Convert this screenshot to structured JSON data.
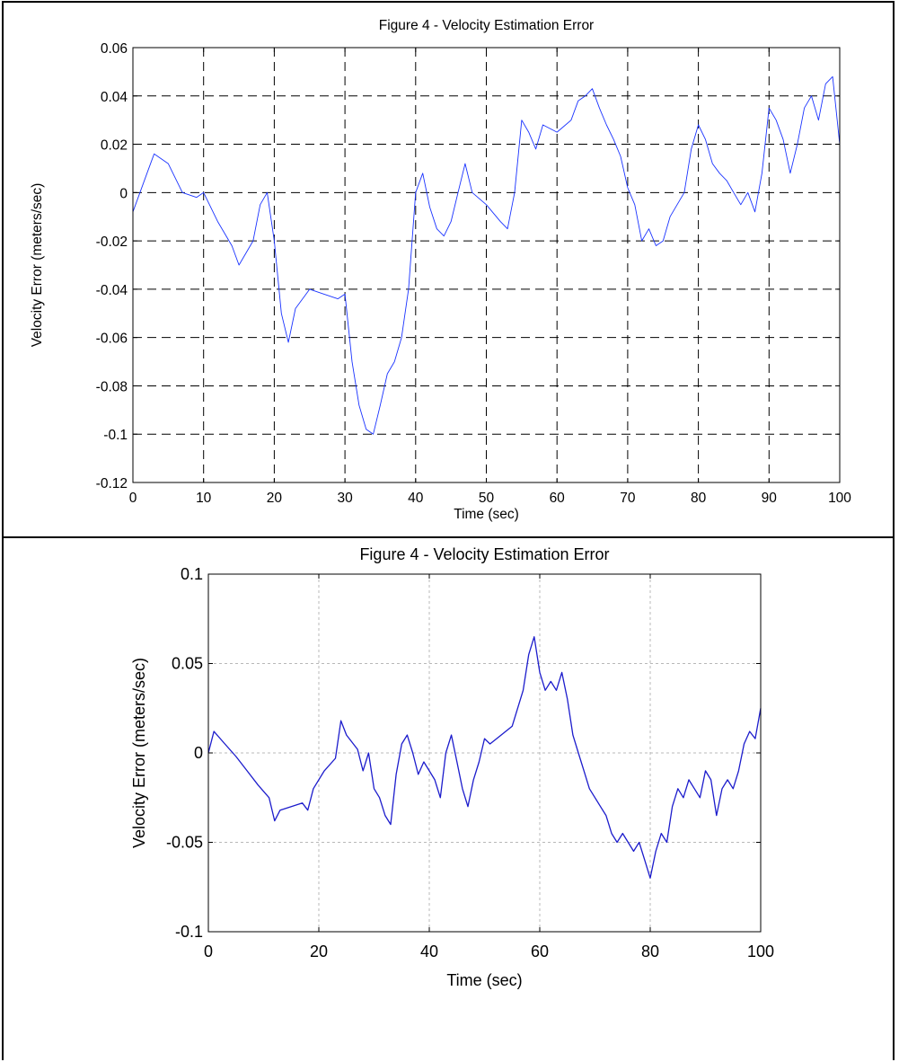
{
  "chart_data": [
    {
      "type": "line",
      "title": "Figure 4 - Velocity Estimation Error",
      "xlabel": "Time (sec)",
      "ylabel": "Velocity Error (meters/sec)",
      "xlim": [
        0,
        100
      ],
      "ylim": [
        -0.12,
        0.06
      ],
      "x_ticks": [
        "0",
        "10",
        "20",
        "30",
        "40",
        "50",
        "60",
        "70",
        "80",
        "90",
        "100"
      ],
      "y_ticks": [
        "0.06",
        "0.04",
        "0.02",
        "0",
        "-0.02",
        "-0.04",
        "-0.06",
        "-0.08",
        "-0.1",
        "-0.12"
      ],
      "grid": "on",
      "grid_style": "dashed",
      "line_color": "#1a33ff",
      "x": [
        0,
        2,
        3,
        5,
        7,
        9,
        10,
        12,
        14,
        15,
        17,
        18,
        19,
        20,
        21,
        22,
        23,
        25,
        27,
        29,
        30,
        31,
        32,
        33,
        34,
        35,
        36,
        37,
        38,
        39,
        40,
        41,
        42,
        43,
        44,
        45,
        46,
        47,
        48,
        50,
        52,
        53,
        54,
        55,
        56,
        57,
        58,
        60,
        62,
        63,
        64,
        65,
        66,
        67,
        68,
        69,
        70,
        71,
        72,
        73,
        74,
        75,
        76,
        78,
        79,
        80,
        81,
        82,
        83,
        84,
        85,
        86,
        87,
        88,
        89,
        90,
        91,
        92,
        93,
        94,
        95,
        96,
        97,
        98,
        99,
        100
      ],
      "values": [
        -0.008,
        0.008,
        0.016,
        0.012,
        0.0,
        -0.002,
        0.0,
        -0.012,
        -0.022,
        -0.03,
        -0.02,
        -0.005,
        0.0,
        -0.02,
        -0.05,
        -0.062,
        -0.048,
        -0.04,
        -0.042,
        -0.044,
        -0.042,
        -0.07,
        -0.088,
        -0.098,
        -0.1,
        -0.088,
        -0.075,
        -0.07,
        -0.06,
        -0.04,
        0.0,
        0.008,
        -0.006,
        -0.015,
        -0.018,
        -0.012,
        0.0,
        0.012,
        0.0,
        -0.005,
        -0.012,
        -0.015,
        0.0,
        0.03,
        0.025,
        0.018,
        0.028,
        0.025,
        0.03,
        0.038,
        0.04,
        0.043,
        0.035,
        0.028,
        0.022,
        0.015,
        0.002,
        -0.005,
        -0.02,
        -0.015,
        -0.022,
        -0.02,
        -0.01,
        0.0,
        0.018,
        0.028,
        0.022,
        0.012,
        0.008,
        0.005,
        0.0,
        -0.005,
        0.0,
        -0.008,
        0.008,
        0.035,
        0.03,
        0.022,
        0.008,
        0.02,
        0.035,
        0.04,
        0.03,
        0.045,
        0.048,
        0.02
      ]
    },
    {
      "type": "line",
      "title": "Figure 4 - Velocity Estimation Error",
      "xlabel": "Time (sec)",
      "ylabel": "Velocity Error (meters/sec)",
      "xlim": [
        0,
        100
      ],
      "ylim": [
        -0.1,
        0.1
      ],
      "x_ticks": [
        "0",
        "20",
        "40",
        "60",
        "80",
        "100"
      ],
      "y_ticks": [
        "0.1",
        "0.05",
        "0",
        "-0.05",
        "-0.1"
      ],
      "grid": "on",
      "grid_style": "dotted",
      "line_color": "#1c1ccc",
      "x": [
        0,
        1,
        3,
        5,
        7,
        9,
        11,
        12,
        13,
        15,
        17,
        18,
        19,
        21,
        23,
        24,
        25,
        27,
        28,
        29,
        30,
        31,
        32,
        33,
        34,
        35,
        36,
        37,
        38,
        39,
        40,
        41,
        42,
        43,
        44,
        45,
        46,
        47,
        48,
        49,
        50,
        51,
        53,
        55,
        57,
        58,
        59,
        60,
        61,
        62,
        63,
        64,
        65,
        66,
        67,
        68,
        69,
        70,
        71,
        72,
        73,
        74,
        75,
        76,
        77,
        78,
        79,
        80,
        81,
        82,
        83,
        84,
        85,
        86,
        87,
        88,
        89,
        90,
        91,
        92,
        93,
        94,
        95,
        96,
        97,
        98,
        99,
        100
      ],
      "values": [
        0.0,
        0.012,
        0.005,
        -0.002,
        -0.01,
        -0.018,
        -0.025,
        -0.038,
        -0.032,
        -0.03,
        -0.028,
        -0.032,
        -0.02,
        -0.01,
        -0.003,
        0.018,
        0.01,
        0.002,
        -0.01,
        0.0,
        -0.02,
        -0.025,
        -0.035,
        -0.04,
        -0.012,
        0.005,
        0.01,
        0.0,
        -0.012,
        -0.005,
        -0.01,
        -0.015,
        -0.025,
        0.0,
        0.01,
        -0.005,
        -0.02,
        -0.03,
        -0.015,
        -0.005,
        0.008,
        0.005,
        0.01,
        0.015,
        0.035,
        0.055,
        0.065,
        0.045,
        0.035,
        0.04,
        0.035,
        0.045,
        0.03,
        0.01,
        0.0,
        -0.01,
        -0.02,
        -0.025,
        -0.03,
        -0.035,
        -0.045,
        -0.05,
        -0.045,
        -0.05,
        -0.055,
        -0.05,
        -0.06,
        -0.07,
        -0.055,
        -0.045,
        -0.05,
        -0.03,
        -0.02,
        -0.025,
        -0.015,
        -0.02,
        -0.025,
        -0.01,
        -0.015,
        -0.035,
        -0.02,
        -0.015,
        -0.02,
        -0.01,
        0.005,
        0.012,
        0.008,
        0.025
      ]
    }
  ]
}
